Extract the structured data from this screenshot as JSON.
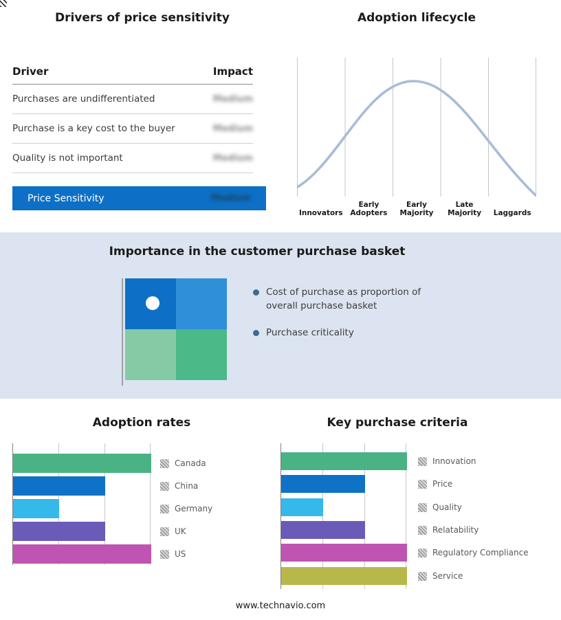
{
  "page": {
    "footer_text": "www.technavio.com",
    "band_color": "#dbe4f0",
    "accent_blue": "#0d70c6"
  },
  "drivers_panel": {
    "title": "Drivers of price sensitivity",
    "header": {
      "driver": "Driver",
      "impact": "Impact"
    },
    "rows": [
      {
        "driver": "Purchases are undifferentiated",
        "impact": "Medium"
      },
      {
        "driver": "Purchase is a key cost to the buyer",
        "impact": "Medium"
      },
      {
        "driver": "Quality is not important",
        "impact": "Medium"
      }
    ],
    "summary": {
      "label": "Price Sensitivity",
      "impact": "Medium",
      "bg": "#0d70c6"
    },
    "note": "Impact values appear blurred/redacted in source image"
  },
  "basket_panel": {
    "title": "Importance in the customer purchase basket",
    "bullets": [
      "Cost of purchase as proportion of overall purchase basket",
      "Purchase criticality"
    ],
    "bullet_color": "#3e6a8e",
    "quadrants": {
      "top_left": "#0d70c6",
      "top_right": "#2f8fd9",
      "bottom_left": "#84caa5",
      "bottom_right": "#4cb988"
    },
    "marker": "white dot in top-left quadrant"
  },
  "chart_data": [
    {
      "id": "adoption-lifecycle",
      "type": "line",
      "title": "Adoption lifecycle",
      "categories": [
        "Innovators",
        "Early Adopters",
        "Early Majority",
        "Late Majority",
        "Laggards"
      ],
      "values": [
        0.1,
        0.55,
        1.0,
        0.55,
        0.03
      ],
      "ylim": [
        0,
        1
      ],
      "curve_color": "#a9bcd6",
      "grid": "vertical-only",
      "note": "Qualitative bell curve, no numeric axis shown; peak over Early Majority"
    },
    {
      "id": "adoption-rates",
      "type": "bar",
      "orientation": "horizontal",
      "title": "Adoption rates",
      "categories": [
        "Canada",
        "China",
        "Germany",
        "UK",
        "US"
      ],
      "values": [
        3,
        2,
        1,
        2,
        3
      ],
      "xmax": 3,
      "colors": [
        "#4ab385",
        "#0e72c6",
        "#35b9ea",
        "#6a5bb8",
        "#c054b2"
      ],
      "legend_position": "right",
      "note": "No numeric axis labels; values estimated in gridline units; legend swatches blurred in source"
    },
    {
      "id": "key-purchase-criteria",
      "type": "bar",
      "orientation": "horizontal",
      "title": "Key purchase criteria",
      "categories": [
        "Innovation",
        "Price",
        "Quality",
        "Relatability",
        "Regulatory Compliance",
        "Service"
      ],
      "values": [
        3,
        2,
        1,
        2,
        3,
        3
      ],
      "xmax": 3,
      "colors": [
        "#4ab385",
        "#0e72c6",
        "#35b9ea",
        "#6a5bb8",
        "#c054b2",
        "#b8b84a"
      ],
      "legend_position": "right",
      "note": "No numeric axis labels; values estimated in gridline units; legend swatches blurred in source"
    }
  ]
}
